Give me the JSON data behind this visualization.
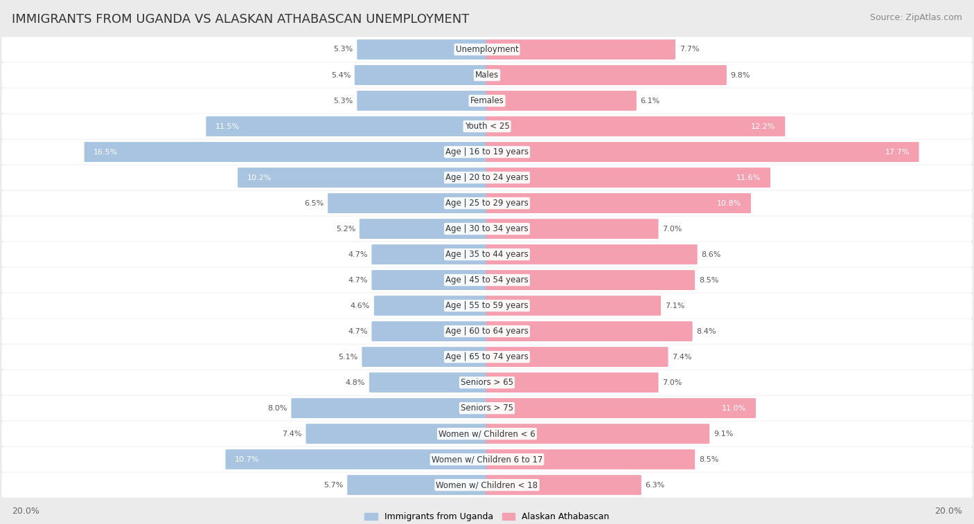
{
  "title": "IMMIGRANTS FROM UGANDA VS ALASKAN ATHABASCAN UNEMPLOYMENT",
  "source": "Source: ZipAtlas.com",
  "categories": [
    "Unemployment",
    "Males",
    "Females",
    "Youth < 25",
    "Age | 16 to 19 years",
    "Age | 20 to 24 years",
    "Age | 25 to 29 years",
    "Age | 30 to 34 years",
    "Age | 35 to 44 years",
    "Age | 45 to 54 years",
    "Age | 55 to 59 years",
    "Age | 60 to 64 years",
    "Age | 65 to 74 years",
    "Seniors > 65",
    "Seniors > 75",
    "Women w/ Children < 6",
    "Women w/ Children 6 to 17",
    "Women w/ Children < 18"
  ],
  "left_values": [
    5.3,
    5.4,
    5.3,
    11.5,
    16.5,
    10.2,
    6.5,
    5.2,
    4.7,
    4.7,
    4.6,
    4.7,
    5.1,
    4.8,
    8.0,
    7.4,
    10.7,
    5.7
  ],
  "right_values": [
    7.7,
    9.8,
    6.1,
    12.2,
    17.7,
    11.6,
    10.8,
    7.0,
    8.6,
    8.5,
    7.1,
    8.4,
    7.4,
    7.0,
    11.0,
    9.1,
    8.5,
    6.3
  ],
  "left_color": "#a8c4e0",
  "right_color": "#f4a0b0",
  "left_label": "Immigrants from Uganda",
  "right_label": "Alaskan Athabascan",
  "axis_max": 20.0,
  "background_color": "#ebebeb",
  "bar_bg_color": "#ffffff",
  "title_fontsize": 13,
  "source_fontsize": 9,
  "label_fontsize": 8.5,
  "value_fontsize": 8.0,
  "legend_fontsize": 9,
  "axis_label_fontsize": 9
}
